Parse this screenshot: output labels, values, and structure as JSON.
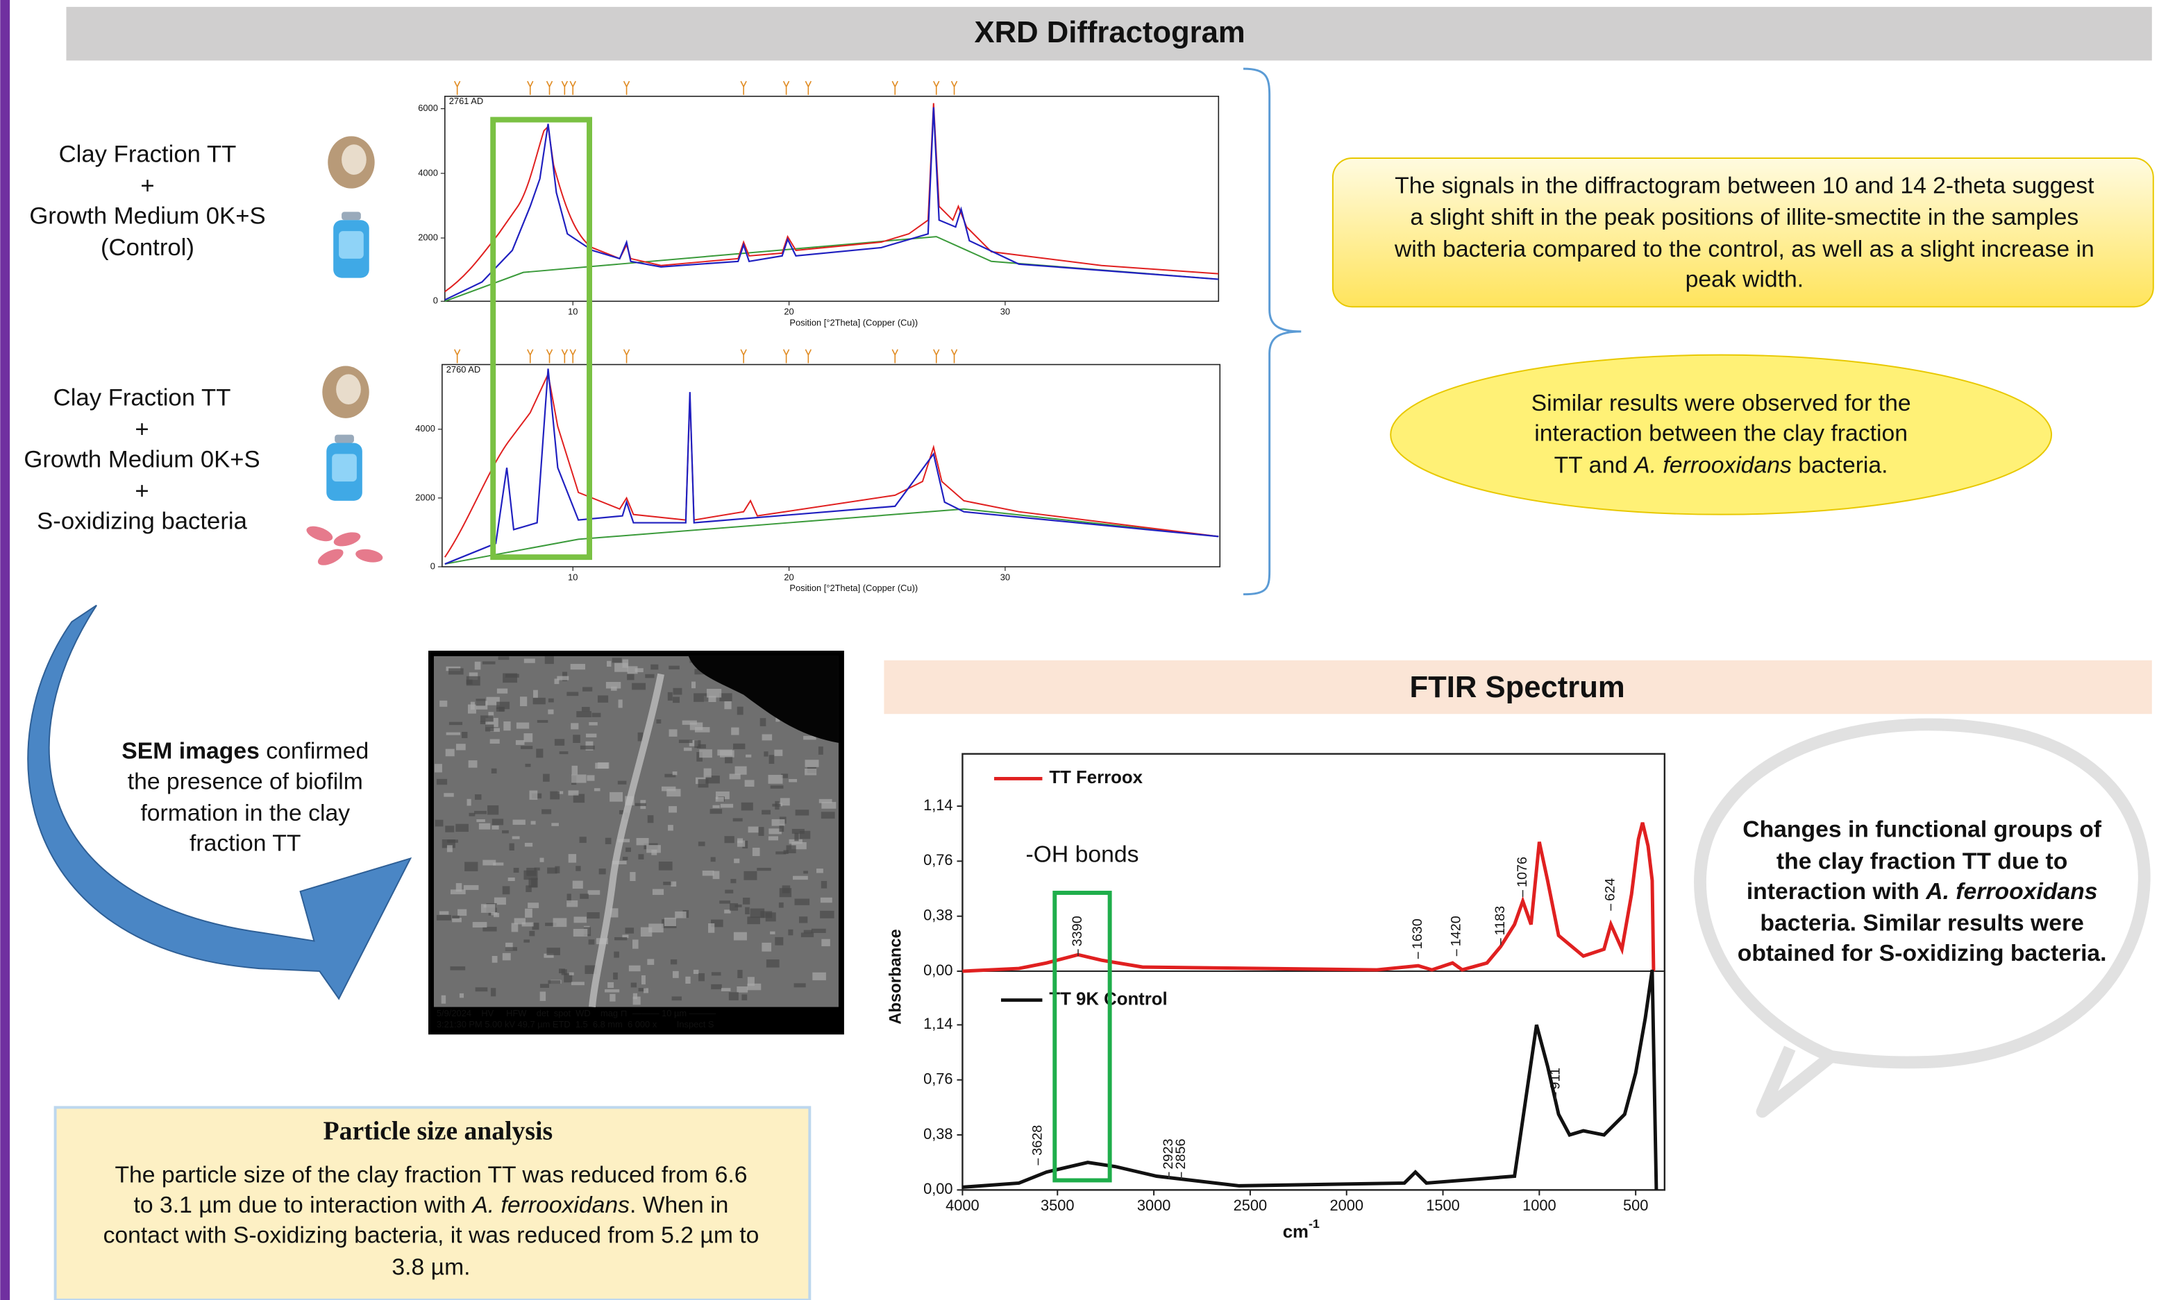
{
  "xrd": {
    "title": "XRD Diffractogram",
    "samples": [
      [
        "Clay Fraction TT",
        "+",
        "Growth Medium 0K+S",
        "(Control)"
      ],
      [
        "Clay Fraction TT",
        "+",
        "Growth Medium 0K+S",
        "+",
        "S-oxidizing bacteria"
      ]
    ],
    "plots": [
      {
        "sample_id": "2761 AD",
        "yticks": [
          "6000",
          "4000",
          "2000",
          "0"
        ],
        "xticks": [
          "10",
          "20",
          "30"
        ],
        "xlabel": "Position [°2Theta] (Copper (Cu))"
      },
      {
        "sample_id": "2760 AD",
        "yticks": [
          "4000",
          "2000",
          "0"
        ],
        "xticks": [
          "10",
          "20",
          "30"
        ],
        "xlabel": "Position [°2Theta] (Copper (Cu))"
      }
    ],
    "finding": [
      "The signals in the diffractogram between 10 and 14 2-theta suggest",
      "a slight shift in the peak positions of illite-smectite in the samples",
      "with bacteria compared to the control, as well as a slight increase in",
      "peak width."
    ],
    "similar": [
      "Similar results were observed for the",
      "interaction between the clay fraction",
      [
        "TT and ",
        "A. ferrooxidans",
        " bacteria."
      ]
    ]
  },
  "sem": {
    "caption": [
      [
        "SEM images",
        " confirmed"
      ],
      "the presence of biofilm",
      "formation in the clay",
      "fraction TT"
    ],
    "databar": [
      "5/9/2024    HV     HFW    det  spot  WD    mag ⊓  ——— 10 µm ———",
      "3:21:30 PM 5.00 kV 49.7 µm ETD  1.5  6.8 mm  6 000 x        Inspect S"
    ]
  },
  "particle_size": {
    "title": "Particle size analysis",
    "text": [
      "The particle size of the clay fraction TT was reduced from 6.6",
      [
        "to 3.1 µm due to interaction with ",
        "A. ferrooxidans",
        ". When in"
      ],
      "contact with S-oxidizing bacteria, it was reduced from 5.2 µm to",
      "3.8 µm."
    ]
  },
  "ftir": {
    "title": "FTIR Spectrum",
    "ylabel": "Absorbance",
    "xlabel": "cm",
    "xlabel_exponent": "-1",
    "yticks_upper": [
      "1,14",
      "0,76",
      "0,38",
      "0,00"
    ],
    "yticks_lower": [
      "1,14",
      "0,76",
      "0,38",
      "0,00"
    ],
    "xticks": [
      "4000",
      "3500",
      "3000",
      "2500",
      "2000",
      "1500",
      "1000",
      "500"
    ],
    "legend": [
      "TT Ferroox",
      "TT 9K Control"
    ],
    "peaks_upper": [
      "3390",
      "1630",
      "1420",
      "1183",
      "1076",
      "624"
    ],
    "peaks_lower": [
      "3628",
      "2923",
      "2856",
      "911"
    ],
    "annotation": "-OH bonds",
    "interpretation": [
      "Changes in functional groups of",
      "the clay fraction TT due to",
      [
        "interaction with ",
        "A. ferrooxidans"
      ],
      "bacteria. Similar results were",
      "obtained for S-oxidizing bacteria."
    ]
  }
}
